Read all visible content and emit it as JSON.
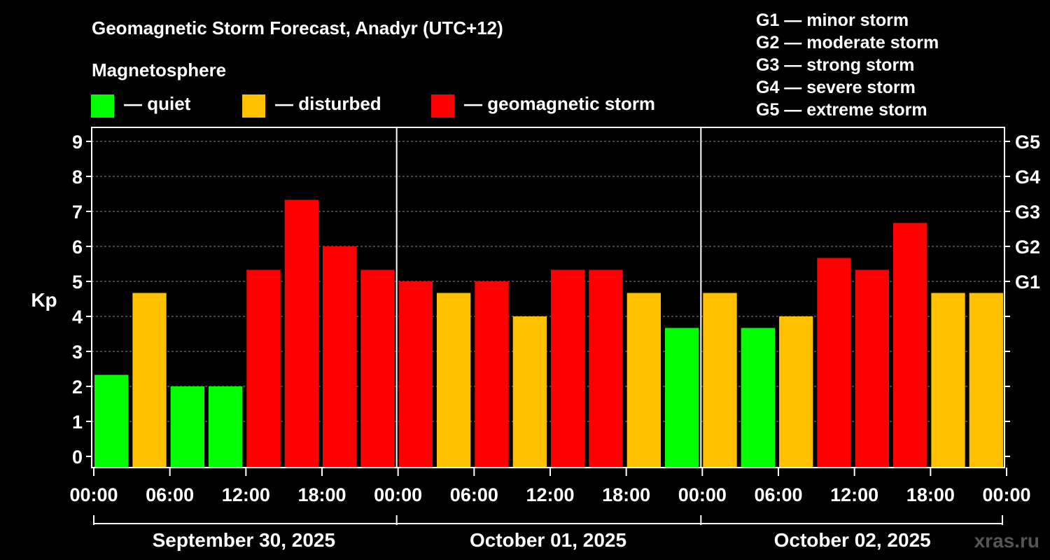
{
  "chart_data": {
    "type": "bar",
    "title": "Geomagnetic Storm Forecast, Anadyr (UTC+12)",
    "legend_title": "Magnetosphere",
    "legend": [
      {
        "label": "— quiet",
        "color": "#00ff00"
      },
      {
        "label": "— disturbed",
        "color": "#ffc000"
      },
      {
        "label": "— geomagnetic storm",
        "color": "#ff0000"
      }
    ],
    "scale_legend": [
      "G1 — minor storm",
      "G2 — moderate storm",
      "G3 — strong storm",
      "G4 — severe storm",
      "G5 — extreme storm"
    ],
    "ylabel": "Kp",
    "ylim": [
      0,
      9
    ],
    "yticks": [
      "0",
      "1",
      "2",
      "3",
      "4",
      "5",
      "6",
      "7",
      "8",
      "9"
    ],
    "g_ticks": [
      {
        "kp": 5,
        "label": "G1"
      },
      {
        "kp": 6,
        "label": "G2"
      },
      {
        "kp": 7,
        "label": "G3"
      },
      {
        "kp": 8,
        "label": "G4"
      },
      {
        "kp": 9,
        "label": "G5"
      }
    ],
    "xticks": [
      "00:00",
      "06:00",
      "12:00",
      "18:00",
      "00:00",
      "06:00",
      "12:00",
      "18:00",
      "00:00",
      "06:00",
      "12:00",
      "18:00",
      "00:00"
    ],
    "days": [
      "September 30, 2025",
      "October 01, 2025",
      "October 02, 2025"
    ],
    "values": [
      2.33,
      4.67,
      2.0,
      2.0,
      5.33,
      7.33,
      6.0,
      5.33,
      5.0,
      4.67,
      5.0,
      4.0,
      5.33,
      5.33,
      4.67,
      3.67,
      4.67,
      3.67,
      4.0,
      5.67,
      5.33,
      6.67,
      4.67,
      4.67
    ],
    "colors": {
      "quiet": "#00ff00",
      "disturbed": "#ffc000",
      "storm": "#ff0000"
    },
    "watermark": "xras.ru"
  }
}
